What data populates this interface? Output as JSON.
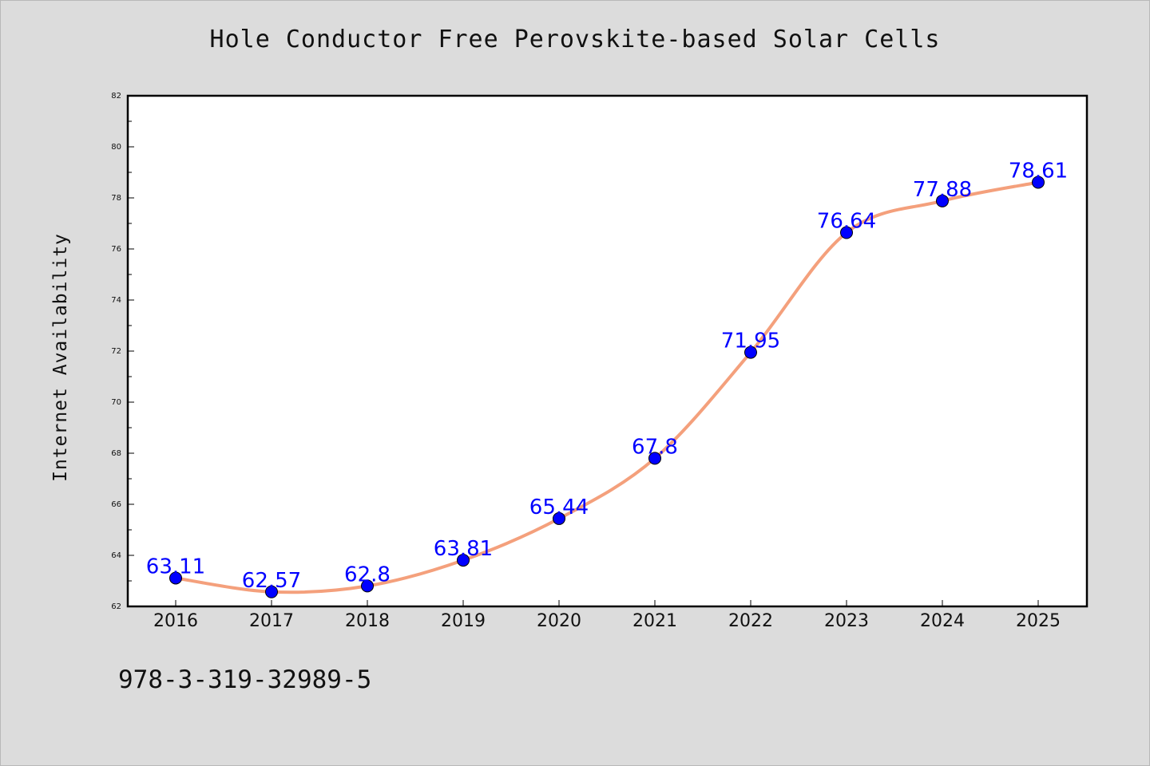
{
  "chart_data": {
    "type": "line",
    "title": "Hole Conductor Free Perovskite-based Solar Cells",
    "xlabel": "",
    "ylabel": "Internet Availability",
    "categories": [
      "2016",
      "2017",
      "2018",
      "2019",
      "2020",
      "2021",
      "2022",
      "2023",
      "2024",
      "2025"
    ],
    "series": [
      {
        "values": [
          63.11,
          62.57,
          62.8,
          63.81,
          65.44,
          67.8,
          71.95,
          76.64,
          77.88,
          78.61
        ],
        "data_labels": [
          "63.11",
          "62.57",
          "62.8",
          "63.81",
          "65.44",
          "67.8",
          "71.95",
          "76.64",
          "77.88",
          "78.61"
        ],
        "line_color": "#f4a07c",
        "marker_color": "#0000ff",
        "label_color": "#0000ff"
      }
    ],
    "ylim": [
      62,
      82
    ],
    "yticks": [
      62,
      64,
      66,
      68,
      70,
      72,
      74,
      76,
      78,
      80,
      82
    ],
    "ytick_labels": [
      "62",
      "64",
      "66",
      "68",
      "70",
      "72",
      "74",
      "76",
      "78",
      "80",
      "82"
    ],
    "grid": false,
    "legend": "none"
  },
  "footnote": "978-3-319-32989-5"
}
